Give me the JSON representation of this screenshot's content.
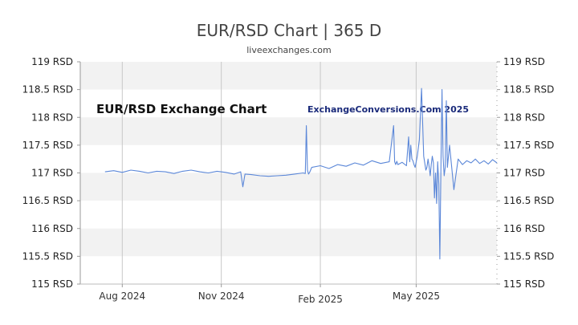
{
  "chart_data": {
    "type": "line",
    "title": "EUR/RSD Chart | 365 D",
    "subtitle": "liveexchanges.com",
    "annotations": [
      "EUR/RSD Exchange Chart",
      "ExchangeConversions.Com 2025"
    ],
    "ylim": [
      115,
      119
    ],
    "y_ticks": [
      "119 RSD",
      "118.5 RSD",
      "118 RSD",
      "117.5 RSD",
      "117 RSD",
      "116.5 RSD",
      "116 RSD",
      "115.5 RSD",
      "115 RSD"
    ],
    "x_ticks": [
      {
        "label": "Aug 2024",
        "day": 16
      },
      {
        "label": "Nov 2024",
        "day": 108
      },
      {
        "label": "Feb 2025",
        "day": 200
      },
      {
        "label": "May 2025",
        "day": 289
      }
    ],
    "x_range_days": [
      -23,
      364
    ],
    "x_start_label": "2024-07-25",
    "series": [
      {
        "name": "",
        "color": "#5b87d8",
        "x": [
          0,
          8,
          16,
          24,
          32,
          40,
          48,
          56,
          64,
          72,
          80,
          88,
          96,
          104,
          112,
          120,
          126,
          128,
          130,
          136,
          144,
          152,
          160,
          168,
          176,
          184,
          186,
          187,
          188,
          189,
          190,
          192,
          200,
          208,
          216,
          224,
          232,
          240,
          248,
          256,
          264,
          268,
          269,
          270,
          271,
          272,
          276,
          280,
          282,
          283,
          284,
          285,
          286,
          287,
          288,
          290,
          292,
          294,
          296,
          298,
          299,
          300,
          301,
          302,
          303,
          304,
          305,
          306,
          307,
          308,
          309,
          310,
          311,
          312,
          313,
          314,
          315,
          316,
          317,
          318,
          320,
          324,
          328,
          332,
          336,
          340,
          344,
          348,
          352,
          356,
          360,
          364
        ],
        "values": [
          117.02,
          117.04,
          117.01,
          117.05,
          117.03,
          117.0,
          117.03,
          117.02,
          116.99,
          117.03,
          117.05,
          117.02,
          117.0,
          117.03,
          117.01,
          116.98,
          117.02,
          116.75,
          116.98,
          116.97,
          116.95,
          116.94,
          116.95,
          116.96,
          116.98,
          117.0,
          116.99,
          117.85,
          117.05,
          116.98,
          117.01,
          117.1,
          117.13,
          117.08,
          117.15,
          117.12,
          117.18,
          117.14,
          117.22,
          117.17,
          117.2,
          117.85,
          117.2,
          117.15,
          117.21,
          117.15,
          117.19,
          117.13,
          117.65,
          117.2,
          117.5,
          117.25,
          117.22,
          117.15,
          117.1,
          117.3,
          117.6,
          118.52,
          117.3,
          117.05,
          117.1,
          117.25,
          117.12,
          116.95,
          117.15,
          117.3,
          117.18,
          116.55,
          117.0,
          116.45,
          117.2,
          116.8,
          115.45,
          117.15,
          118.5,
          117.3,
          116.95,
          117.1,
          118.3,
          117.1,
          117.5,
          116.7,
          117.25,
          117.15,
          117.22,
          117.18,
          117.25,
          117.17,
          117.22,
          117.16,
          117.24,
          117.18
        ]
      }
    ],
    "grid": true,
    "legend": "none"
  }
}
